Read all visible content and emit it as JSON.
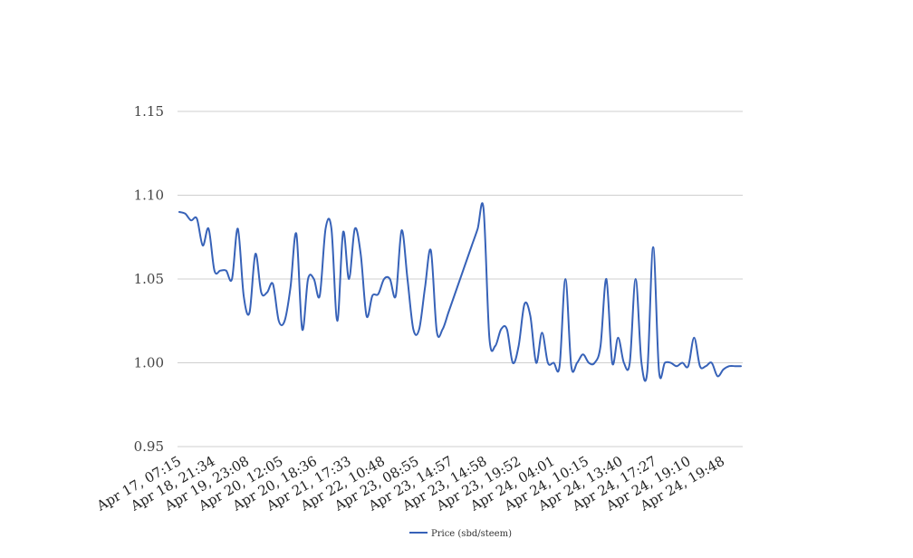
{
  "chart_data": {
    "type": "line",
    "title": "",
    "xlabel": "",
    "ylabel": "",
    "ylim": [
      0.95,
      1.15
    ],
    "yticks": [
      "0.95",
      "1.00",
      "1.05",
      "1.10",
      "1.15"
    ],
    "grid": true,
    "legend_position": "bottom-center",
    "line_color": "#3762b8",
    "grid_color": "#cfcfcf",
    "x_tick_labels": [
      "Apr 17, 07:15",
      "Apr 18, 21:34",
      "Apr 19, 23:08",
      "Apr 20, 12:05",
      "Apr 20, 18:36",
      "Apr 21, 17:33",
      "Apr 22, 10:48",
      "Apr 23, 08:55",
      "Apr 23, 14:57",
      "Apr 23, 14:58",
      "Apr 23, 19:52",
      "Apr 24, 04:01",
      "Apr 24, 10:15",
      "Apr 24, 13:40",
      "Apr 24, 17:27",
      "Apr 24, 19:10",
      "Apr 24, 19:48"
    ],
    "series": [
      {
        "name": "Price (sbd/steem)",
        "values": [
          1.09,
          1.089,
          1.085,
          1.086,
          1.07,
          1.08,
          1.055,
          1.055,
          1.055,
          1.05,
          1.08,
          1.04,
          1.03,
          1.065,
          1.042,
          1.042,
          1.047,
          1.025,
          1.025,
          1.045,
          1.077,
          1.02,
          1.05,
          1.05,
          1.04,
          1.08,
          1.08,
          1.025,
          1.078,
          1.05,
          1.08,
          1.065,
          1.028,
          1.04,
          1.041,
          1.05,
          1.05,
          1.04,
          1.079,
          1.05,
          1.02,
          1.02,
          1.045,
          1.067,
          1.019,
          1.02,
          1.03,
          1.04,
          1.05,
          1.06,
          1.07,
          1.08,
          1.092,
          1.015,
          1.01,
          1.02,
          1.02,
          1.0,
          1.01,
          1.035,
          1.028,
          1.0,
          1.018,
          1.0,
          1.0,
          0.998,
          1.05,
          0.998,
          1.0,
          1.005,
          1.0,
          1.0,
          1.01,
          1.05,
          1.0,
          1.015,
          1.0,
          1.0,
          1.05,
          1.0,
          0.995,
          1.069,
          0.995,
          1.0,
          1.0,
          0.998,
          1.0,
          0.998,
          1.015,
          0.998,
          0.998,
          1.0,
          0.992,
          0.996,
          0.998,
          0.998,
          0.998
        ]
      }
    ]
  }
}
